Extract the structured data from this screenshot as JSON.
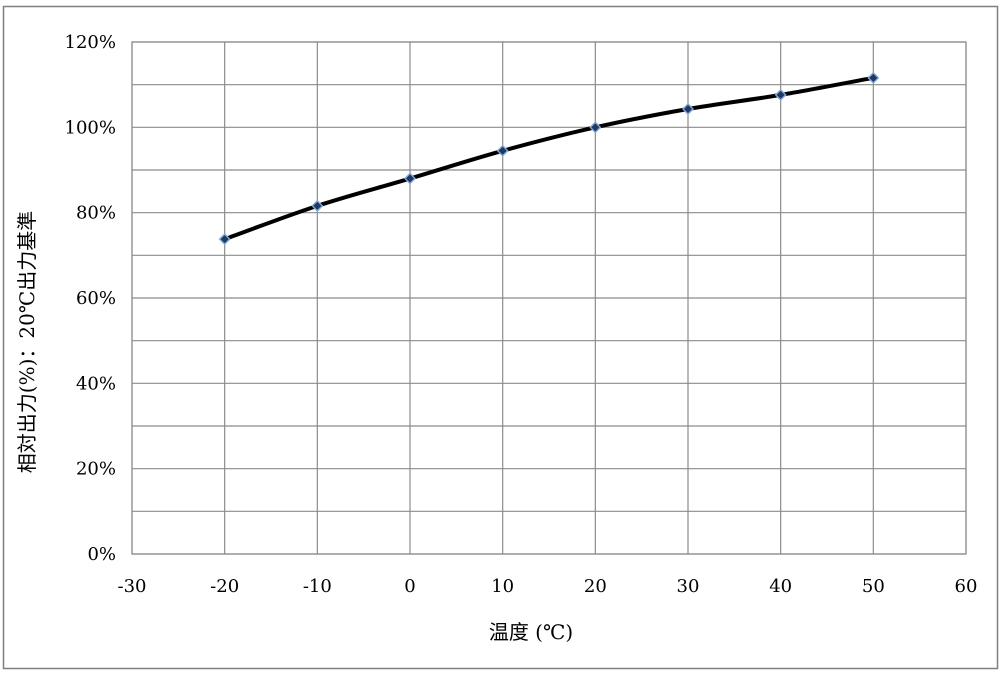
{
  "chart_data": {
    "type": "line",
    "title": "",
    "xlabel": "温度 (℃)",
    "ylabel": "相対出力(%)：20℃出力基準",
    "xlim": [
      -30,
      60
    ],
    "ylim": [
      0,
      120
    ],
    "x_ticks": [
      -30,
      -20,
      -10,
      0,
      10,
      20,
      30,
      40,
      50,
      60
    ],
    "x_tick_labels": [
      "-30",
      "-20",
      "-10",
      "0",
      "10",
      "20",
      "30",
      "40",
      "50",
      "60"
    ],
    "y_ticks": [
      0,
      20,
      40,
      60,
      80,
      100,
      120
    ],
    "y_tick_labels": [
      "0%",
      "20%",
      "40%",
      "60%",
      "80%",
      "100%",
      "120%"
    ],
    "y_minor_gridlines": [
      10,
      30,
      50,
      70,
      90,
      110
    ],
    "grid": true,
    "legend": "none",
    "series": [
      {
        "x": [
          -20,
          -10,
          0,
          10,
          20,
          30,
          40,
          50
        ],
        "values": [
          73.8,
          81.6,
          88.0,
          94.5,
          100.0,
          104.3,
          107.6,
          111.6
        ],
        "line_color": "#000000",
        "marker": "diamond",
        "marker_fill": "#1f3864",
        "marker_edge": "#7fa7d6"
      }
    ],
    "colors": {
      "frame": "#7f7f7f",
      "gridline": "#8c8c8c",
      "plot_border": "#8c8c8c"
    }
  }
}
